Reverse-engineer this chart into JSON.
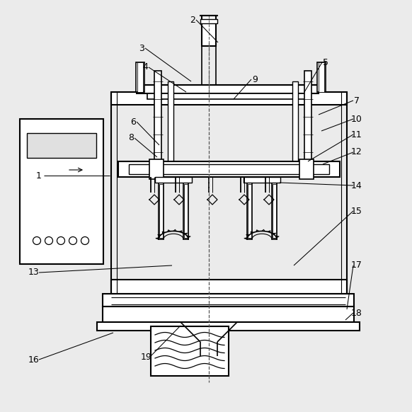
{
  "bg_color": "#ebebeb",
  "line_color": "#000000",
  "figsize": [
    5.82,
    5.82
  ],
  "dpi": 100,
  "label_items": [
    [
      "1",
      55,
      248,
      155,
      248,
      true
    ],
    [
      "2",
      272,
      28,
      308,
      60,
      false
    ],
    [
      "3",
      200,
      68,
      270,
      115,
      false
    ],
    [
      "4",
      205,
      95,
      263,
      130,
      false
    ],
    [
      "5",
      460,
      88,
      430,
      130,
      false
    ],
    [
      "6",
      188,
      172,
      225,
      205,
      false
    ],
    [
      "7",
      504,
      142,
      450,
      162,
      false
    ],
    [
      "8",
      185,
      195,
      222,
      222,
      false
    ],
    [
      "9",
      360,
      112,
      330,
      140,
      false
    ],
    [
      "10",
      504,
      168,
      454,
      185,
      false
    ],
    [
      "11",
      504,
      190,
      435,
      228,
      false
    ],
    [
      "12",
      504,
      215,
      456,
      232,
      false
    ],
    [
      "13",
      48,
      385,
      243,
      375,
      false
    ],
    [
      "14",
      504,
      262,
      395,
      258,
      false
    ],
    [
      "15",
      504,
      298,
      415,
      375,
      false
    ],
    [
      "16",
      48,
      508,
      160,
      470,
      false
    ],
    [
      "17",
      504,
      375,
      490,
      437,
      false
    ],
    [
      "18",
      504,
      442,
      488,
      452,
      false
    ],
    [
      "19",
      207,
      504,
      255,
      460,
      false
    ]
  ]
}
